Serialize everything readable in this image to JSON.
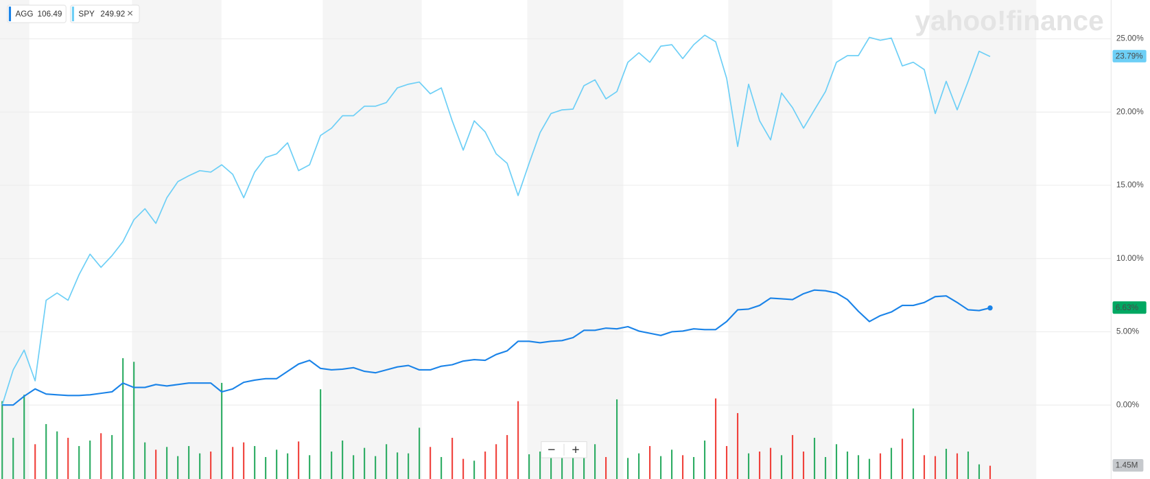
{
  "chart_data": {
    "type": "line",
    "watermark": "yahoo!finance",
    "ylim": [
      -5.05,
      27.65
    ],
    "yticks": [
      {
        "value": 0,
        "label": "0.00%"
      },
      {
        "value": 5,
        "label": "5.00%"
      },
      {
        "value": 10,
        "label": "10.00%"
      },
      {
        "value": 15,
        "label": "15.00%"
      },
      {
        "value": 20,
        "label": "20.00%"
      },
      {
        "value": 25,
        "label": "25.00%"
      }
    ],
    "grid": true,
    "series": [
      {
        "name": "AGG",
        "price": "106.49",
        "color": "#1a83e8",
        "label_color": "#00a862",
        "last_label": "6.63%",
        "values": [
          0,
          0,
          0.6,
          1.1,
          0.75,
          0.7,
          0.65,
          0.65,
          0.7,
          0.8,
          0.9,
          1.5,
          1.2,
          1.2,
          1.4,
          1.3,
          1.4,
          1.5,
          1.5,
          1.5,
          0.9,
          1.1,
          1.55,
          1.7,
          1.8,
          1.8,
          2.3,
          2.8,
          3.05,
          2.5,
          2.4,
          2.45,
          2.55,
          2.3,
          2.2,
          2.4,
          2.6,
          2.7,
          2.4,
          2.4,
          2.65,
          2.75,
          3.0,
          3.1,
          3.05,
          3.45,
          3.7,
          4.35,
          4.35,
          4.25,
          4.35,
          4.4,
          4.6,
          5.1,
          5.1,
          5.25,
          5.2,
          5.35,
          5.05,
          4.9,
          4.75,
          5.0,
          5.05,
          5.2,
          5.15,
          5.15,
          5.7,
          6.5,
          6.55,
          6.8,
          7.3,
          7.25,
          7.2,
          7.6,
          7.85,
          7.8,
          7.65,
          7.2,
          6.4,
          5.7,
          6.1,
          6.35,
          6.8,
          6.8,
          7.0,
          7.4,
          7.45,
          7.0,
          6.5,
          6.45,
          6.63
        ]
      },
      {
        "name": "SPY",
        "price": "249.92",
        "color": "#6dcff6",
        "label_color": "#6dcff6",
        "last_label": "23.79%",
        "values": [
          0,
          2.4,
          3.75,
          1.65,
          7.15,
          7.65,
          7.15,
          8.9,
          10.3,
          9.4,
          10.2,
          11.15,
          12.65,
          13.4,
          12.4,
          14.15,
          15.25,
          15.65,
          16,
          15.9,
          16.4,
          15.75,
          14.15,
          15.9,
          16.9,
          17.15,
          17.9,
          16,
          16.4,
          18.4,
          18.9,
          19.75,
          19.75,
          20.4,
          20.4,
          20.65,
          21.65,
          21.9,
          22.05,
          21.25,
          21.65,
          19.4,
          17.4,
          19.4,
          18.65,
          17.15,
          16.5,
          14.3,
          16.5,
          18.6,
          19.9,
          20.15,
          20.2,
          21.8,
          22.2,
          20.9,
          21.4,
          23.4,
          24.05,
          23.4,
          24.5,
          24.6,
          23.65,
          24.6,
          25.25,
          24.8,
          22.3,
          17.65,
          21.9,
          19.4,
          18.1,
          21.3,
          20.3,
          18.9,
          20.15,
          21.4,
          23.4,
          23.85,
          23.85,
          25.1,
          24.9,
          25.05,
          23.15,
          23.4,
          22.9,
          19.9,
          22.1,
          20.15,
          22.1,
          24.15,
          23.79
        ]
      }
    ],
    "volume": {
      "up_color": "#2dac63",
      "down_color": "#f0423c",
      "label_color": "#c6c9cd",
      "last_label": "1.45M",
      "values": [
        8.5,
        4.5,
        9.2,
        3.8,
        6.0,
        5.2,
        4.5,
        3.6,
        4.2,
        5.0,
        4.8,
        13.2,
        12.8,
        4.0,
        3.2,
        3.5,
        2.5,
        3.6,
        2.8,
        3.0,
        10.5,
        3.5,
        4.0,
        3.6,
        2.4,
        3.2,
        2.8,
        4.1,
        2.6,
        9.8,
        3.0,
        4.2,
        2.6,
        3.4,
        2.5,
        3.8,
        2.9,
        2.8,
        5.6,
        3.5,
        2.4,
        4.5,
        2.2,
        2.0,
        3.0,
        3.8,
        4.8,
        8.5,
        2.7,
        3.0,
        2.9,
        3.6,
        2.5,
        2.6,
        3.8,
        2.4,
        8.7,
        2.3,
        2.8,
        3.6,
        2.5,
        3.2,
        2.6,
        2.4,
        4.2,
        8.8,
        3.6,
        7.2,
        2.8,
        3.0,
        3.4,
        2.6,
        4.8,
        3.0,
        4.5,
        2.4,
        3.8,
        3.0,
        2.6,
        2.2,
        2.8,
        3.4,
        4.4,
        7.7,
        2.6,
        2.5,
        3.3,
        2.8,
        3.0,
        1.6,
        1.45
      ]
    }
  },
  "controls": {
    "close": "×",
    "zoom_out": "−",
    "zoom_in": "+"
  }
}
